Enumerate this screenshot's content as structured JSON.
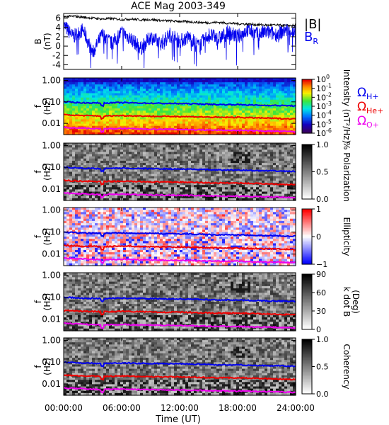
{
  "chart_data": [
    {
      "type": "line",
      "title": "ACE Mag 2003-349",
      "ylabel_lines": [
        "B",
        "(nT)"
      ],
      "yticks": [
        "6",
        "4",
        "2",
        "0",
        "-2",
        "-4"
      ],
      "ylim": [
        -5,
        7
      ],
      "x_hours": [
        0,
        1,
        2,
        3,
        4,
        5,
        6,
        7,
        8,
        9,
        10,
        11,
        12,
        13,
        14,
        15,
        16,
        17,
        18,
        19,
        20,
        21,
        22,
        23,
        24
      ],
      "series": [
        {
          "name": "|B|",
          "color": "#000000",
          "values": [
            6.3,
            6.4,
            6.2,
            6.0,
            5.8,
            5.9,
            5.7,
            5.8,
            5.6,
            5.7,
            5.5,
            5.4,
            5.3,
            5.2,
            5.1,
            5.0,
            5.1,
            4.9,
            4.8,
            4.7,
            4.6,
            4.5,
            4.5,
            4.4,
            4.4
          ]
        },
        {
          "name": "B",
          "sub": "R",
          "color": "#0000ee",
          "values": [
            4.5,
            2.0,
            3.5,
            -1.5,
            2.5,
            0.5,
            3.0,
            1.5,
            -0.5,
            2.0,
            0.5,
            2.5,
            1.0,
            2.0,
            0.0,
            2.5,
            1.5,
            3.0,
            2.0,
            3.5,
            2.5,
            3.0,
            2.5,
            3.5,
            3.0
          ]
        }
      ],
      "legend": [
        {
          "text": "|B|",
          "color": "#000000"
        },
        {
          "text": "B",
          "sub": "R",
          "color": "#0000ee"
        }
      ]
    },
    {
      "type": "heatmap",
      "quantity": "Intensity",
      "ylabel_lines": [
        "f",
        "(Hz)"
      ],
      "yticks": [
        "1.00",
        "0.10",
        "0.01"
      ],
      "colorbar": {
        "label": "Intensity (nT²/Hz)",
        "ticks": [
          {
            "base": "10",
            "exp": "0"
          },
          {
            "base": "10",
            "exp": "-1"
          },
          {
            "base": "10",
            "exp": "-2"
          },
          {
            "base": "10",
            "exp": "-3"
          },
          {
            "base": "10",
            "exp": "-4"
          },
          {
            "base": "10",
            "exp": "-5"
          },
          {
            "base": "10",
            "exp": "-6"
          }
        ]
      },
      "legend": [
        {
          "text": "Ω",
          "sub": "H+",
          "color": "#0000ee"
        },
        {
          "text": "Ω",
          "sub": "He+",
          "color": "#ee0000"
        },
        {
          "text": "Ω",
          "sub": "O+",
          "color": "#ee00ee"
        }
      ]
    },
    {
      "type": "heatmap",
      "quantity": "% Polarization",
      "ylabel_lines": [
        "f",
        "(Hz)"
      ],
      "yticks": [
        "1.00",
        "0.10",
        "0.01"
      ],
      "colorbar": {
        "label": "% Polarization",
        "ticks": [
          "1.0",
          "0.5",
          "0.0"
        ]
      }
    },
    {
      "type": "heatmap",
      "quantity": "Ellipticity",
      "ylabel_lines": [
        "f",
        "(Hz)"
      ],
      "yticks": [
        "1.00",
        "0.10",
        "0.01"
      ],
      "colorbar": {
        "label": "Ellipticity",
        "ticks": [
          "1",
          "0",
          "−1"
        ]
      }
    },
    {
      "type": "heatmap",
      "quantity": "k dot B",
      "ylabel_lines": [
        "f",
        "(Hz)"
      ],
      "yticks": [
        "1.00",
        "0.10",
        "0.01"
      ],
      "colorbar": {
        "label_lines": [
          "k dot B",
          "(Deg)"
        ],
        "ticks": [
          "90",
          "60",
          "30",
          "0"
        ]
      }
    },
    {
      "type": "heatmap",
      "quantity": "Coherency",
      "ylabel_lines": [
        "f",
        "(Hz)"
      ],
      "yticks": [
        "1.00",
        "0.10",
        "0.01"
      ],
      "colorbar": {
        "label": "Coherency",
        "ticks": [
          "1.0",
          "0.5",
          "0.0"
        ]
      }
    }
  ],
  "gyrofrequency_lines": {
    "x_hours": [
      0,
      2,
      4,
      6,
      8,
      10,
      12,
      14,
      16,
      18,
      20,
      22,
      24
    ],
    "series": [
      {
        "name": "ΩH+",
        "color": "#0000ee",
        "hz": [
          0.1,
          0.09,
          0.088,
          0.092,
          0.088,
          0.085,
          0.083,
          0.08,
          0.075,
          0.075,
          0.07,
          0.068,
          0.065
        ]
      },
      {
        "name": "ΩHe+",
        "color": "#ee0000",
        "hz": [
          0.025,
          0.023,
          0.022,
          0.023,
          0.022,
          0.021,
          0.021,
          0.02,
          0.019,
          0.019,
          0.018,
          0.017,
          0.016
        ]
      },
      {
        "name": "ΩO+",
        "color": "#ee00ee",
        "hz": [
          0.0065,
          0.006,
          0.0055,
          0.0058,
          0.0055,
          0.0053,
          0.0052,
          0.005,
          0.0048,
          0.0047,
          0.0045,
          0.0043,
          0.0041
        ]
      }
    ]
  },
  "xaxis": {
    "label": "Time (UT)",
    "ticks": [
      "00:00:00",
      "06:00:00",
      "12:00:00",
      "18:00:00",
      "24:00:00"
    ],
    "tick_hours": [
      0,
      6,
      12,
      18,
      24
    ]
  },
  "colors": {
    "h_plus": "#0000ee",
    "he_plus": "#ee0000",
    "o_plus": "#ee00ee",
    "b_total": "#000000",
    "b_r": "#0000ee"
  }
}
